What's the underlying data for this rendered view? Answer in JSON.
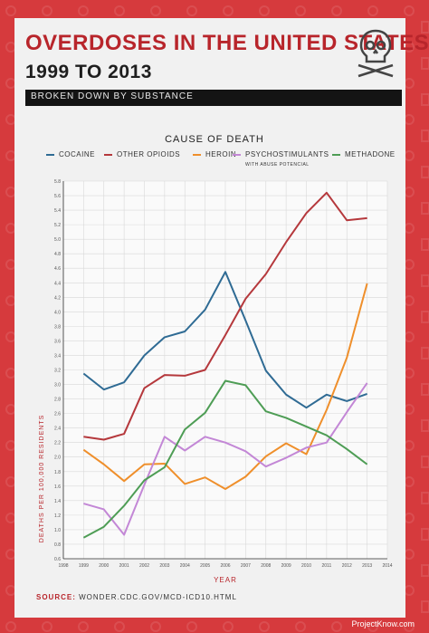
{
  "header": {
    "title_line1": "OVERDOSES IN THE UNITED STATES",
    "title_line2": "1999 TO 2013",
    "subtitle": "BROKEN DOWN BY SUBSTANCE"
  },
  "legend": {
    "title": "CAUSE OF DEATH",
    "items": [
      {
        "label": "COCAINE",
        "color": "#2f6b94"
      },
      {
        "label": "OTHER OPIOIDS",
        "color": "#b5383c"
      },
      {
        "label": "HEROIN",
        "color": "#ef8f2b"
      },
      {
        "label": "PSYCHOSTIMULANTS",
        "note": "WITH ABUSE POTENCIAL",
        "color": "#c387d6"
      },
      {
        "label": "METHADONE",
        "color": "#4e9d55"
      }
    ]
  },
  "chart_data": {
    "type": "line",
    "x": [
      1999,
      2000,
      2001,
      2002,
      2003,
      2004,
      2005,
      2006,
      2007,
      2008,
      2009,
      2010,
      2011,
      2012,
      2013
    ],
    "x_ticks": [
      "1998",
      "1999",
      "2000",
      "2001",
      "2002",
      "2003",
      "2004",
      "2005",
      "2006",
      "2007",
      "2008",
      "2009",
      "2010",
      "2011",
      "2012",
      "2013",
      "2014"
    ],
    "xlim": [
      1998,
      2014
    ],
    "ylim": [
      0.6,
      5.8
    ],
    "y_ticks": [
      "0.6",
      "0.8",
      "1.0",
      "1.2",
      "1.4",
      "1.6",
      "1.8",
      "2.0",
      "2.2",
      "2.4",
      "2.6",
      "2.8",
      "3.0",
      "3.2",
      "3.4",
      "3.6",
      "3.8",
      "4.0",
      "4.2",
      "4.4",
      "4.6",
      "4.8",
      "5.0",
      "5.2",
      "5.4",
      "5.6",
      "5.8"
    ],
    "xlabel": "YEAR",
    "ylabel": "DEATHS PER 100,000 RESIDENTS",
    "grid": true,
    "series": [
      {
        "name": "COCAINE",
        "color": "#2f6b94",
        "values": [
          3.15,
          2.93,
          3.03,
          3.4,
          3.65,
          3.73,
          4.03,
          4.55,
          3.88,
          3.19,
          2.86,
          2.68,
          2.86,
          2.77,
          2.87
        ]
      },
      {
        "name": "OTHER OPIOIDS",
        "color": "#b5383c",
        "values": [
          2.28,
          2.24,
          2.32,
          2.95,
          3.13,
          3.12,
          3.2,
          3.68,
          4.18,
          4.52,
          4.96,
          5.36,
          5.64,
          5.26,
          5.29
        ]
      },
      {
        "name": "HEROIN",
        "color": "#ef8f2b",
        "values": [
          2.1,
          1.9,
          1.67,
          1.9,
          1.91,
          1.63,
          1.72,
          1.56,
          1.73,
          2.01,
          2.19,
          2.04,
          2.65,
          3.37,
          4.39
        ]
      },
      {
        "name": "PSYCHOSTIMULANTS",
        "color": "#c387d6",
        "values": [
          1.36,
          1.28,
          0.93,
          1.62,
          2.28,
          2.09,
          2.28,
          2.2,
          2.08,
          1.87,
          1.99,
          2.13,
          2.2,
          2.62,
          3.02
        ]
      },
      {
        "name": "METHADONE",
        "color": "#4e9d55",
        "values": [
          0.89,
          1.04,
          1.33,
          1.68,
          1.86,
          2.38,
          2.61,
          3.05,
          2.99,
          2.63,
          2.54,
          2.42,
          2.3,
          2.11,
          1.9
        ]
      }
    ]
  },
  "footer": {
    "source_label": "SOURCE:",
    "source_text": "WONDER.CDC.GOV/MCD-ICD10.HTML",
    "brand": "ProjectKnow.com"
  }
}
